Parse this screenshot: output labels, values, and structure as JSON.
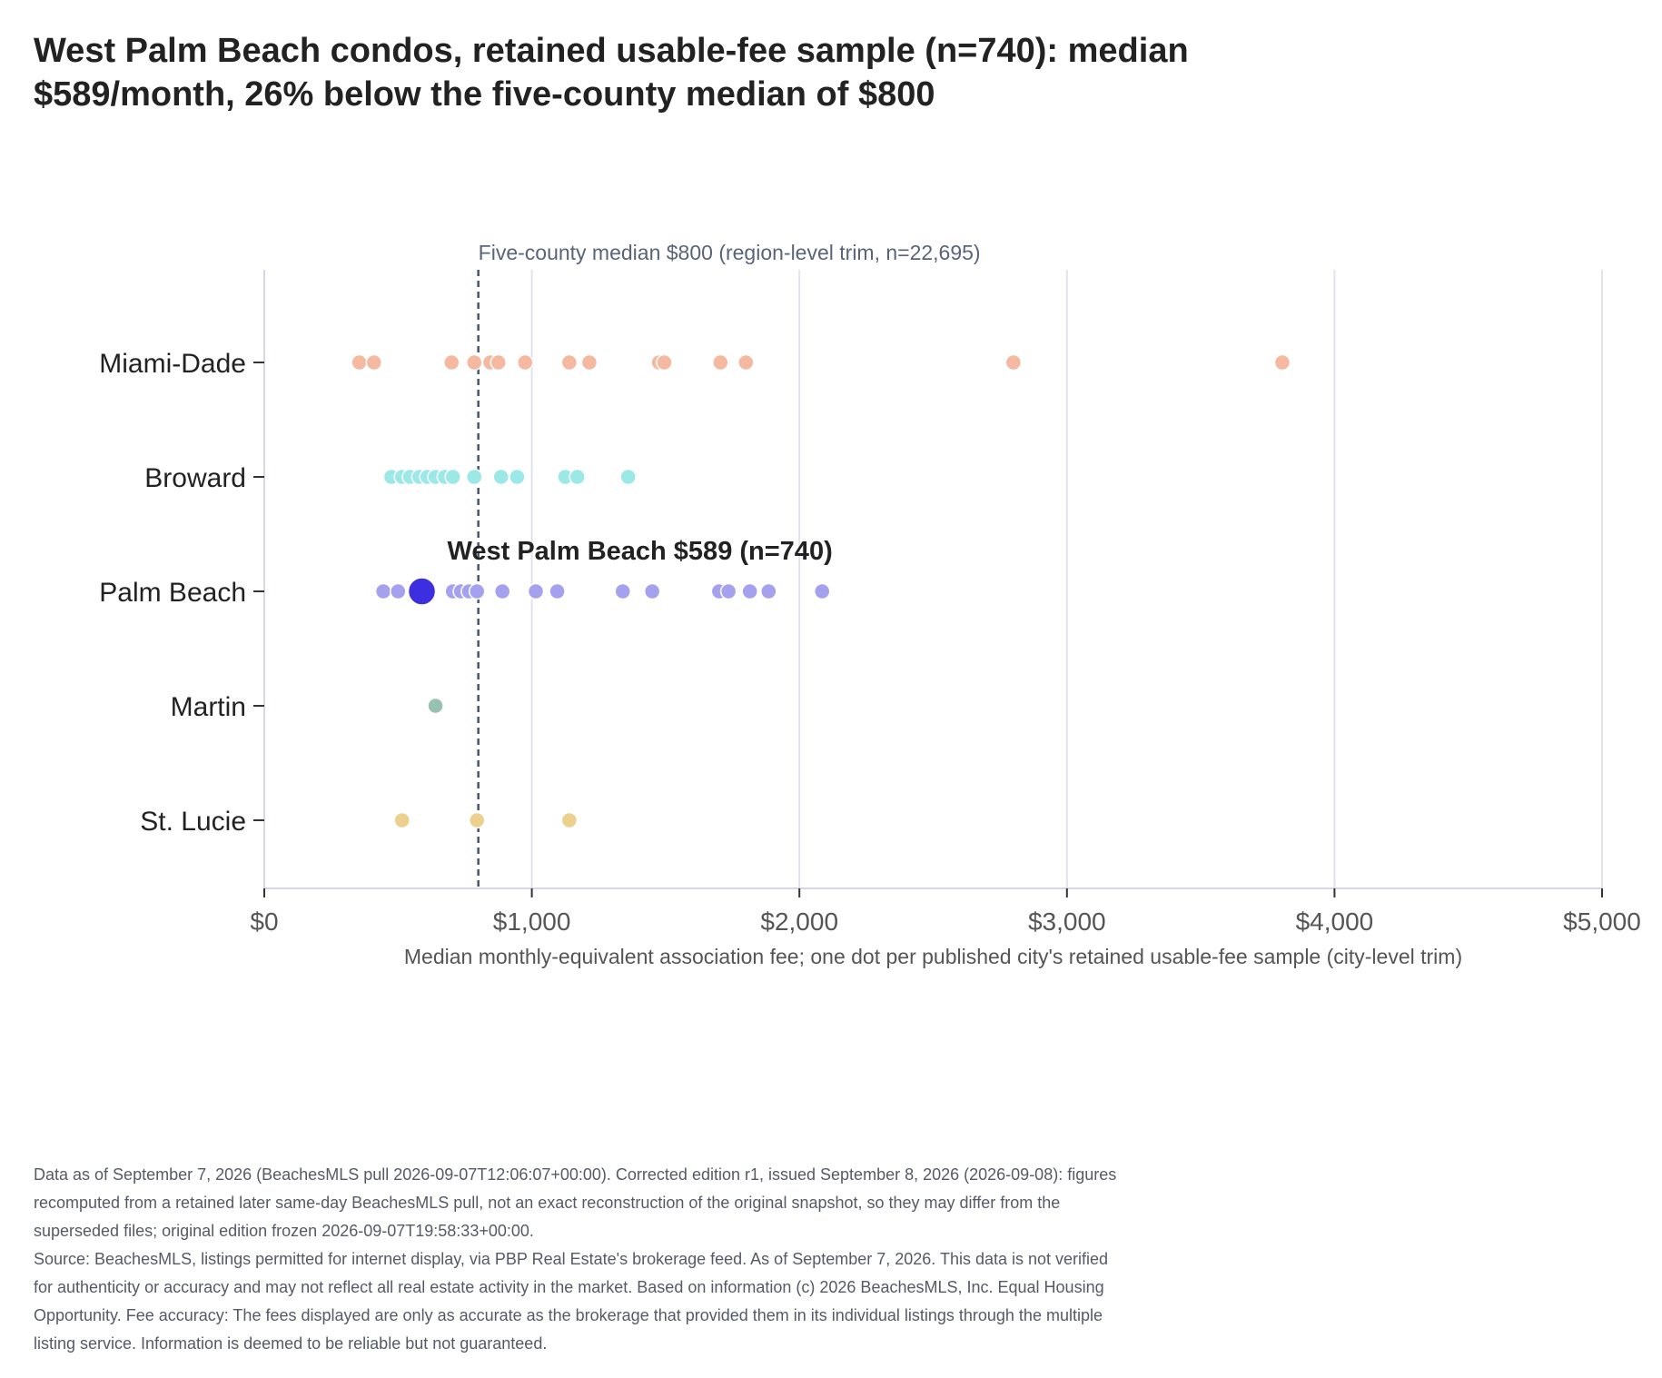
{
  "title_lines": [
    "West Palm Beach condos, retained usable-fee sample (n=740): median",
    "$589/month, 26% below the five-county median of $800"
  ],
  "footnote_lines": [
    "Data as of September 7, 2026 (BeachesMLS pull 2026-09-07T12:06:07+00:00). Corrected edition r1, issued September 8, 2026 (2026-09-08): figures",
    "recomputed from a retained later same-day BeachesMLS pull, not an exact reconstruction of the original snapshot, so they may differ from the",
    "superseded files; original edition frozen 2026-09-07T19:58:33+00:00.",
    "Source: BeachesMLS, listings permitted for internet display, via PBP Real Estate's brokerage feed. As of September 7, 2026. This data is not verified",
    "for authenticity or accuracy and may not reflect all real estate activity in the market. Based on information (c) 2026 BeachesMLS, Inc. Equal Housing",
    "Opportunity. Fee accuracy: The fees displayed are only as accurate as the brokerage that provided them in its individual listings through the multiple",
    "listing service. Information is deemed to be reliable but not guaranteed."
  ],
  "chart_data": {
    "type": "scatter",
    "subtype": "dot-strip",
    "xlabel": "Median monthly-equivalent association fee; one dot per published city's retained usable-fee sample (city-level trim)",
    "ylabel": "",
    "xlim": [
      0,
      5000
    ],
    "x_ticks": [
      0,
      1000,
      2000,
      3000,
      4000,
      5000
    ],
    "x_tick_labels": [
      "$0",
      "$1,000",
      "$2,000",
      "$3,000",
      "$4,000",
      "$5,000"
    ],
    "categories": [
      "Miami-Dade",
      "Broward",
      "Palm Beach",
      "Martin",
      "St. Lucie"
    ],
    "grid": "vertical",
    "legend": "none",
    "reference_line": {
      "x": 800,
      "style": "dashed",
      "label": "Five-county median $800 (region-level trim, n=22,695)"
    },
    "series": [
      {
        "name": "Miami-Dade",
        "color": "#f4b9a0",
        "values": [
          355,
          410,
          700,
          785,
          845,
          875,
          975,
          1140,
          1215,
          1475,
          1495,
          1705,
          1800,
          2800,
          3805
        ]
      },
      {
        "name": "Broward",
        "color": "#9ce8e6",
        "values": [
          475,
          515,
          545,
          580,
          610,
          640,
          675,
          705,
          785,
          885,
          945,
          1125,
          1170,
          1360
        ]
      },
      {
        "name": "Palm Beach",
        "color": "#a5a1ee",
        "values": [
          445,
          500,
          705,
          735,
          765,
          795,
          890,
          1015,
          1095,
          1340,
          1450,
          1700,
          1735,
          1815,
          1885,
          2085
        ]
      },
      {
        "name": "Martin",
        "color": "#99c1b1",
        "values": [
          640
        ]
      },
      {
        "name": "St. Lucie",
        "color": "#ecd08e",
        "values": [
          515,
          795,
          1140
        ]
      }
    ],
    "highlight": {
      "category": "Palm Beach",
      "x": 589,
      "color": "#3d2ee0",
      "label": "West Palm Beach $589 (n=740)"
    }
  }
}
